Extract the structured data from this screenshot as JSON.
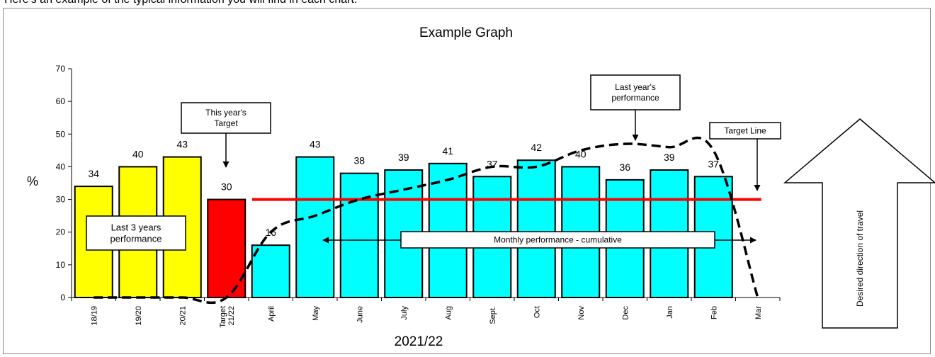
{
  "intro_text": "Here's an example of the typical information you will find in each chart:",
  "chart_data": {
    "type": "bar",
    "title": "Example Graph",
    "xlabel": "2021/22",
    "ylabel": "%",
    "ylim": [
      0,
      70
    ],
    "yticks": [
      "0",
      "10",
      "20",
      "30",
      "40",
      "50",
      "60",
      "70"
    ],
    "categories": [
      {
        "label": "18/19",
        "lines": [
          "18/19"
        ]
      },
      {
        "label": "19/20",
        "lines": [
          "19/20"
        ]
      },
      {
        "label": "20/21",
        "lines": [
          "20/21"
        ]
      },
      {
        "label": "Target 21/22",
        "lines": [
          "Target",
          "21/22"
        ]
      },
      {
        "label": "April",
        "lines": [
          "April"
        ]
      },
      {
        "label": "May",
        "lines": [
          "May"
        ]
      },
      {
        "label": "June",
        "lines": [
          "June"
        ]
      },
      {
        "label": "July",
        "lines": [
          "July"
        ]
      },
      {
        "label": "Aug",
        "lines": [
          "Aug"
        ]
      },
      {
        "label": "Sept.",
        "lines": [
          "Sept."
        ]
      },
      {
        "label": "Oct",
        "lines": [
          "Oct"
        ]
      },
      {
        "label": "Nov",
        "lines": [
          "Nov"
        ]
      },
      {
        "label": "Dec",
        "lines": [
          "Dec"
        ]
      },
      {
        "label": "Jan",
        "lines": [
          "Jan"
        ]
      },
      {
        "label": "Feb",
        "lines": [
          "Feb"
        ]
      },
      {
        "label": "Mar",
        "lines": [
          "Mar"
        ]
      }
    ],
    "values": [
      34,
      40,
      43,
      30,
      16,
      43,
      38,
      39,
      41,
      37,
      42,
      40,
      36,
      39,
      37,
      null
    ],
    "value_labels": [
      "34",
      "40",
      "43",
      "30",
      "16",
      "43",
      "38",
      "39",
      "41",
      "37",
      "42",
      "40",
      "36",
      "39",
      "37",
      ""
    ],
    "bar_colors": [
      "#ffff00",
      "#ffff00",
      "#ffff00",
      "#ff0000",
      "#00ffff",
      "#00ffff",
      "#00ffff",
      "#00ffff",
      "#00ffff",
      "#00ffff",
      "#00ffff",
      "#00ffff",
      "#00ffff",
      "#00ffff",
      "#00ffff",
      "#00ffff"
    ],
    "target_line": {
      "value": 30,
      "from": "April",
      "to": "Mar",
      "color": "#ff0000"
    },
    "last_year_line": {
      "style": "dashed",
      "color": "#000000",
      "values": [
        0,
        0,
        0,
        0,
        20,
        25,
        30,
        33,
        36,
        40,
        40,
        45,
        47,
        46,
        45,
        0
      ]
    },
    "callouts": {
      "this_years_target": [
        "This year's",
        "Target"
      ],
      "last_3_years": [
        "Last 3 years",
        "performance"
      ],
      "last_years_performance": [
        "Last year's",
        "performance"
      ],
      "target_line": [
        "Target Line"
      ],
      "monthly_performance": [
        "Monthly performance - cumulative"
      ],
      "direction": [
        "Desired direction of travel"
      ]
    }
  }
}
